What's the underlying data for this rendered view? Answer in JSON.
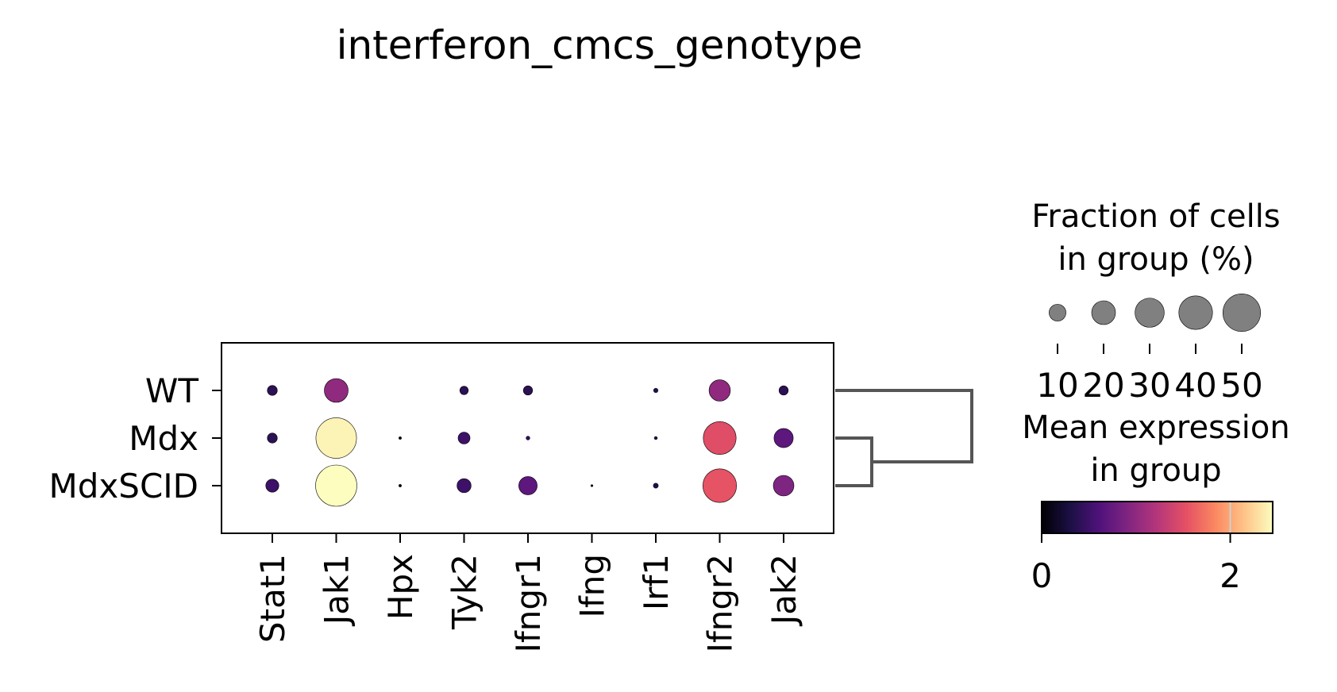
{
  "chart_data": {
    "type": "dotplot",
    "title": "interferon_cmcs_genotype",
    "genes": [
      "Stat1",
      "Jak1",
      "Hpx",
      "Tyk2",
      "Ifngr1",
      "Ifng",
      "Irf1",
      "Ifngr2",
      "Jak2"
    ],
    "groups": [
      "WT",
      "Mdx",
      "MdxSCID"
    ],
    "fraction_pct": [
      [
        3.5,
        20,
        0,
        2.5,
        3,
        0,
        0.8,
        16,
        3
      ],
      [
        3.5,
        58,
        0.3,
        5,
        0.6,
        0,
        0.4,
        38,
        13
      ],
      [
        6,
        60,
        0.3,
        7,
        12,
        0.2,
        1,
        40,
        15
      ]
    ],
    "mean_expression": [
      [
        0.4,
        1.0,
        0,
        0.4,
        0.4,
        0,
        0.3,
        1.0,
        0.4
      ],
      [
        0.4,
        2.4,
        0,
        0.5,
        0.4,
        0,
        0.3,
        1.5,
        0.7
      ],
      [
        0.5,
        2.5,
        0,
        0.5,
        0.7,
        0,
        0.3,
        1.55,
        0.9
      ]
    ],
    "dendrogram": {
      "merges": [
        [
          "Mdx",
          "MdxSCID"
        ],
        [
          "WT",
          "Mdx+MdxSCID"
        ]
      ]
    },
    "size_legend": {
      "title_lines": [
        "Fraction of cells",
        "in group (%)"
      ],
      "values": [
        10,
        20,
        30,
        40,
        50
      ],
      "labels": [
        "10",
        "20",
        "30",
        "40",
        "50"
      ]
    },
    "color_legend": {
      "title_lines": [
        "Mean expression",
        "in group"
      ],
      "colormap": "magma",
      "range": [
        0,
        2.45
      ],
      "ticks": [
        0,
        2
      ],
      "tick_labels": [
        "0",
        "2"
      ]
    }
  }
}
